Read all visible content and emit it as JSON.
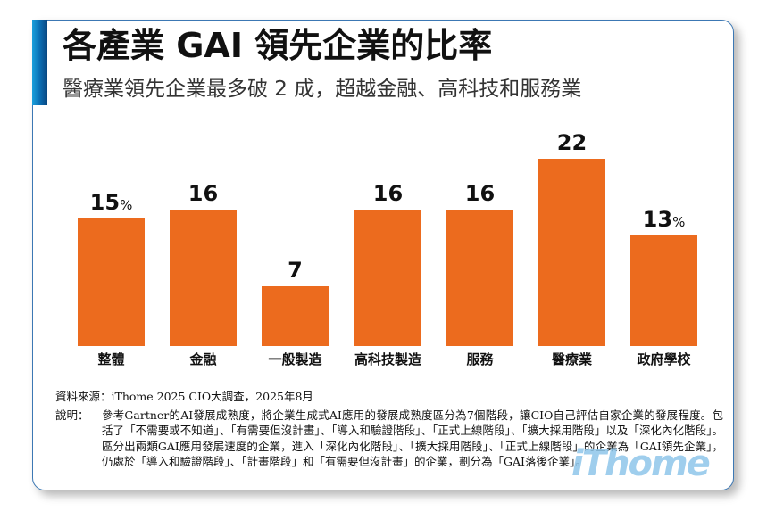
{
  "header": {
    "title": "各產業 GAI 領先企業的比率",
    "subtitle": "醫療業領先企業最多破 2 成，超越金融、高科技和服務業"
  },
  "chart_data": {
    "type": "bar",
    "title": "各產業 GAI 領先企業的比率",
    "subtitle": "醫療業領先企業最多破 2 成，超越金融、高科技和服務業",
    "categories": [
      "整體",
      "金融",
      "一般製造",
      "高科技製造",
      "服務",
      "醫療業",
      "政府學校"
    ],
    "values": [
      15,
      16,
      7,
      16,
      16,
      22,
      13
    ],
    "unit": "%",
    "value_labels": [
      "15",
      "16",
      "7",
      "16",
      "16",
      "22",
      "13"
    ],
    "unit_shown_on": [
      "整體",
      "政府學校"
    ],
    "xlabel": "",
    "ylabel": "",
    "ylim": [
      0,
      22
    ],
    "grid": false,
    "legend": "none",
    "bar_color": "#ec6b1e"
  },
  "footer": {
    "source": "資料來源：iThome 2025 CIO大調查，2025年8月",
    "note_label": "說明：",
    "note_text": "參考Gartner的AI發展成熟度，將企業生成式AI應用的發展成熟度區分為7個階段，讓CIO自己評估自家企業的發展程度。包括了「不需要或不知道」、「有需要但沒計畫」、「導入和驗證階段」、「正式上線階段」、「擴大採用階段」以及「深化內化階段」。區分出兩類GAI應用發展速度的企業，進入「深化內化階段」、「擴大採用階段」、「正式上線階段」的企業為「GAI領先企業」，仍處於「導入和驗證階段」、「計畫階段」和「有需要但沒計畫」的企業，劃分為「GAI落後企業」。"
  },
  "brand": {
    "watermark": "iThome",
    "accent_color": "#0b6fb4",
    "border_color": "#3c78b4",
    "watermark_color": "#8fc6ea"
  }
}
